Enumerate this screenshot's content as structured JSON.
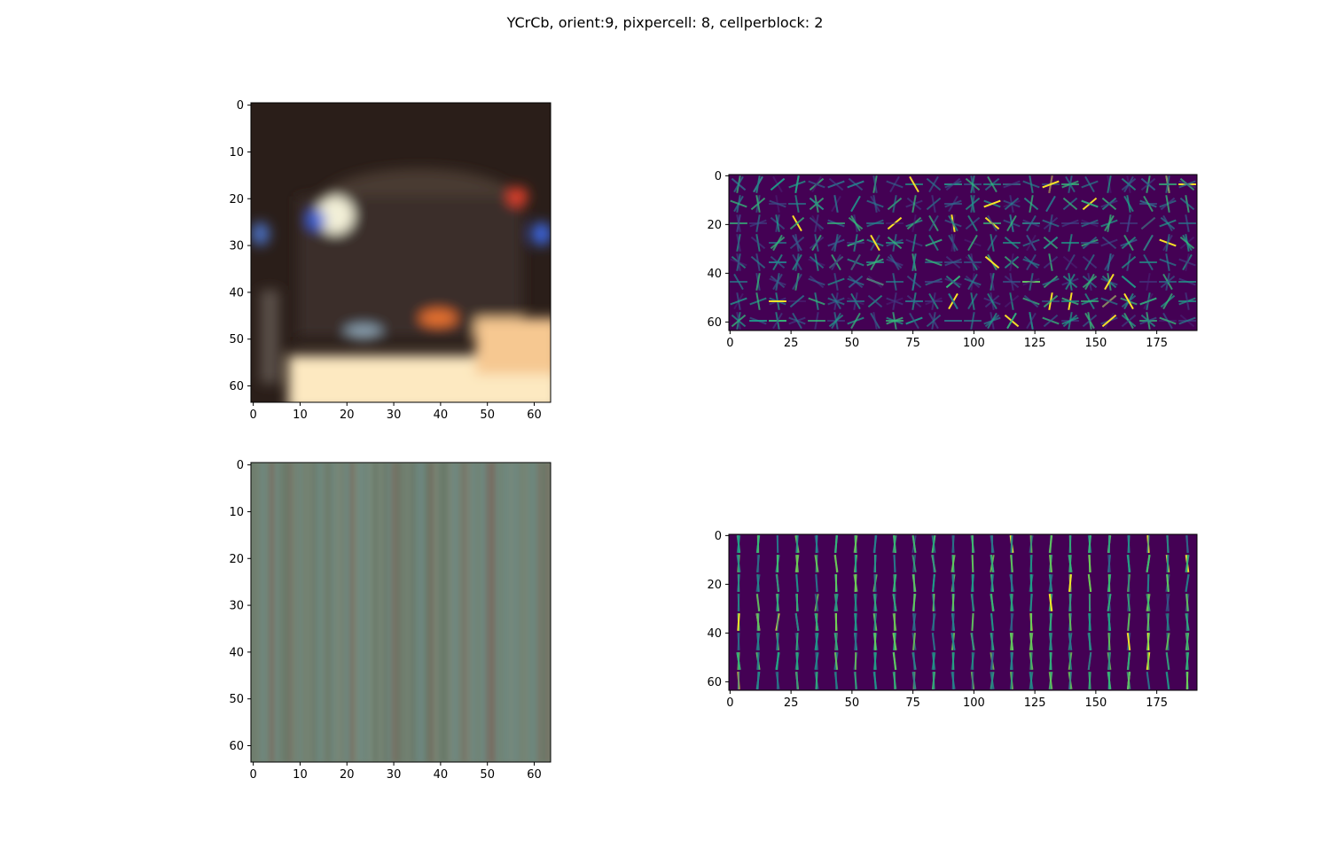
{
  "title": "YCrCb, orient:9, pixpercell: 8, cellperblock: 2",
  "chart_data": [
    {
      "type": "heatmap",
      "image_kind": "rgb-photo",
      "content": "car",
      "shape": [
        64,
        64
      ],
      "xticks": [
        "0",
        "10",
        "20",
        "30",
        "40",
        "50",
        "60"
      ],
      "yticks": [
        "0",
        "10",
        "20",
        "30",
        "40",
        "50",
        "60"
      ],
      "xlim": [
        -0.5,
        63.5
      ],
      "ylim": [
        63.5,
        -0.5
      ],
      "colors": {
        "background": "#2a1e19",
        "roof": "#3b2f2a",
        "bright_glare": "#fde9c1",
        "headlight": "#f3f0d8",
        "blue_light": "#3b63d9",
        "red_light": "#e0402a",
        "taillight": "#e8722f"
      }
    },
    {
      "type": "heatmap",
      "image_kind": "hog-visualization",
      "colormap": "viridis",
      "shape": [
        64,
        192
      ],
      "xticks": [
        "0",
        "25",
        "50",
        "75",
        "100",
        "125",
        "150",
        "175"
      ],
      "yticks": [
        "0",
        "20",
        "40",
        "60"
      ],
      "xlim": [
        -0.5,
        191.5
      ],
      "ylim": [
        63.5,
        -0.5
      ],
      "cells": [
        8,
        24
      ]
    },
    {
      "type": "heatmap",
      "image_kind": "rgb-photo",
      "content": "road",
      "shape": [
        64,
        64
      ],
      "xticks": [
        "0",
        "10",
        "20",
        "30",
        "40",
        "50",
        "60"
      ],
      "yticks": [
        "0",
        "10",
        "20",
        "30",
        "40",
        "50",
        "60"
      ],
      "xlim": [
        -0.5,
        63.5
      ],
      "ylim": [
        63.5,
        -0.5
      ],
      "colors": {
        "base": "#738272",
        "light": "#7c8a7b",
        "dark": "#677666",
        "teal_streak": "#6a8a86",
        "red_streak": "#7a6a5e"
      }
    },
    {
      "type": "heatmap",
      "image_kind": "hog-visualization",
      "colormap": "viridis",
      "shape": [
        64,
        192
      ],
      "xticks": [
        "0",
        "25",
        "50",
        "75",
        "100",
        "125",
        "150",
        "175"
      ],
      "yticks": [
        "0",
        "20",
        "40",
        "60"
      ],
      "xlim": [
        -0.5,
        191.5
      ],
      "ylim": [
        63.5,
        -0.5
      ],
      "cells": [
        8,
        24
      ]
    }
  ]
}
